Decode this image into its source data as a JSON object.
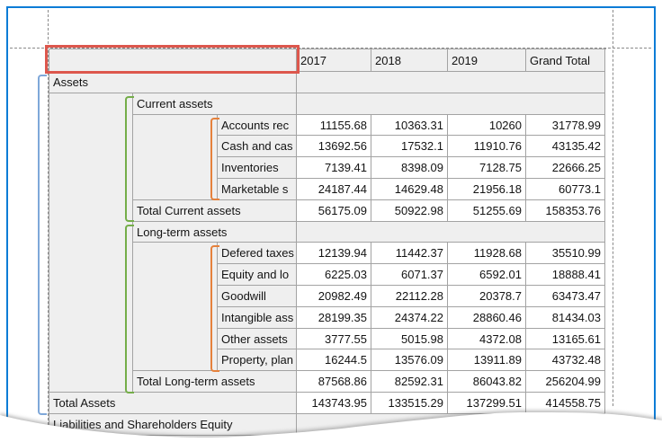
{
  "report": {
    "corner_cell": "",
    "column_headers": [
      "2017",
      "2018",
      "2019",
      "Grand Total"
    ],
    "rows": [
      {
        "kind": "group1",
        "label": "Assets"
      },
      {
        "kind": "group2",
        "label": "Current assets"
      },
      {
        "kind": "detail",
        "label": "Accounts rec",
        "values": [
          "11155.68",
          "10363.31",
          "10260",
          "31778.99"
        ]
      },
      {
        "kind": "detail",
        "label": "Cash and cas",
        "values": [
          "13692.56",
          "17532.1",
          "11910.76",
          "43135.42"
        ]
      },
      {
        "kind": "detail",
        "label": "Inventories",
        "values": [
          "7139.41",
          "8398.09",
          "7128.75",
          "22666.25"
        ]
      },
      {
        "kind": "detail",
        "label": "Marketable s",
        "values": [
          "24187.44",
          "14629.48",
          "21956.18",
          "60773.1"
        ]
      },
      {
        "kind": "total2",
        "label": "Total Current assets",
        "values": [
          "56175.09",
          "50922.98",
          "51255.69",
          "158353.76"
        ]
      },
      {
        "kind": "group2",
        "label": "Long-term assets"
      },
      {
        "kind": "detail",
        "label": "Defered taxes",
        "values": [
          "12139.94",
          "11442.37",
          "11928.68",
          "35510.99"
        ]
      },
      {
        "kind": "detail",
        "label": "Equity and lo",
        "values": [
          "6225.03",
          "6071.37",
          "6592.01",
          "18888.41"
        ]
      },
      {
        "kind": "detail",
        "label": "Goodwill",
        "values": [
          "20982.49",
          "22112.28",
          "20378.7",
          "63473.47"
        ]
      },
      {
        "kind": "detail",
        "label": "Intangible ass",
        "values": [
          "28199.35",
          "24374.22",
          "28860.46",
          "81434.03"
        ]
      },
      {
        "kind": "detail",
        "label": "Other assets",
        "values": [
          "3777.55",
          "5015.98",
          "4372.08",
          "13165.61"
        ]
      },
      {
        "kind": "detail",
        "label": "Property, plan",
        "values": [
          "16244.5",
          "13576.09",
          "13911.89",
          "43732.48"
        ]
      },
      {
        "kind": "total2",
        "label": "Total Long-term assets",
        "values": [
          "87568.86",
          "82592.31",
          "86043.82",
          "256204.99"
        ]
      },
      {
        "kind": "total1",
        "label": "Total Assets",
        "values": [
          "143743.95",
          "133515.29",
          "137299.51",
          "414558.75"
        ]
      },
      {
        "kind": "group1",
        "label": "Liabilities and Shareholders Equity"
      }
    ]
  },
  "colors": {
    "window_frame_blue": "#0d7cd6",
    "selection_red": "#dd574d",
    "bracket_blue": "#7fa8d9",
    "bracket_green": "#74ad49",
    "bracket_orange": "#e5813c",
    "cell_border_gray": "#a3a3a3",
    "guide_gray": "#8a8a8a"
  }
}
